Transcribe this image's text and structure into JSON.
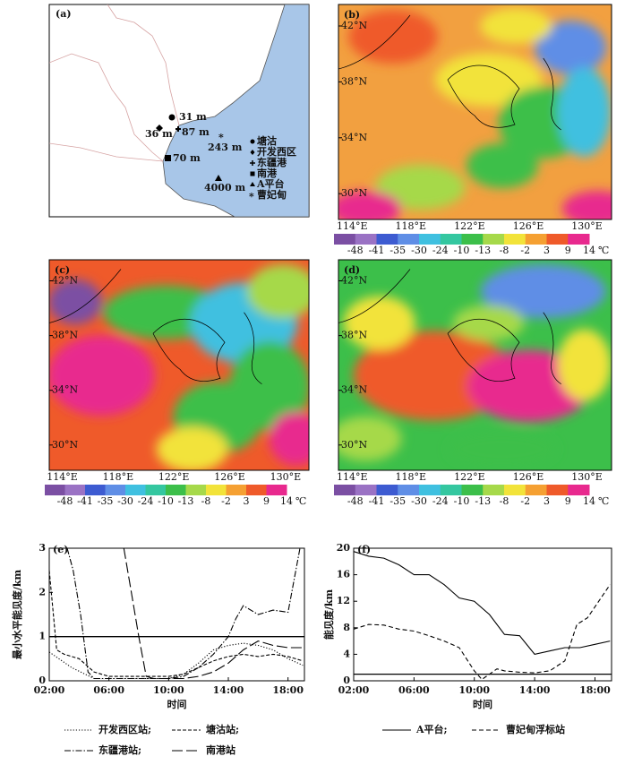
{
  "panel_a": {
    "label": "(a)",
    "heights": [
      "31 m",
      "36 m",
      "87 m",
      "243 m",
      "70 m",
      "4000 m"
    ],
    "legend": [
      "塘沽",
      "开发西区",
      "东疆港",
      "南港",
      "A平台",
      "曹妃甸"
    ]
  },
  "maps": [
    {
      "label": "(b)"
    },
    {
      "label": "(c)"
    },
    {
      "label": "(d)"
    }
  ],
  "lat_labels": [
    "42°N",
    "38°N",
    "34°N",
    "30°N"
  ],
  "lon_labels": [
    "114°E",
    "118°E",
    "122°E",
    "126°E",
    "130°E"
  ],
  "colorbar_labels": [
    "-48",
    "-41",
    "-35",
    "-30",
    "-24",
    "-10",
    "-13",
    "-8",
    "-2",
    "3",
    "9",
    "14"
  ],
  "colorbar_unit": "℃",
  "chart_data": [
    {
      "type": "line",
      "panel_label": "(e)",
      "ylabel": "最小水平能见度/km",
      "xlabel": "时间",
      "xlim": [
        2,
        19.1
      ],
      "xticks": [
        {
          "value": 2,
          "label": "02:00"
        },
        {
          "value": 6,
          "label": "06:00"
        },
        {
          "value": 10,
          "label": "10:00"
        },
        {
          "value": 14,
          "label": "14:00"
        },
        {
          "value": 18,
          "label": "18:00"
        }
      ],
      "ylim": [
        0,
        3
      ],
      "yticks": [
        0,
        1,
        2,
        3
      ],
      "hline": 1,
      "series": [
        {
          "name": "开发西区站;",
          "color": "#000000",
          "dash": "dotted",
          "x": [
            2,
            3.5,
            5,
            6,
            7,
            8,
            9,
            10,
            11,
            12,
            13,
            14,
            15,
            16,
            17,
            18,
            19
          ],
          "values": [
            0.65,
            0.3,
            0.05,
            0.05,
            0.05,
            0.05,
            0.05,
            0.05,
            0.15,
            0.4,
            0.7,
            0.8,
            0.85,
            0.8,
            0.7,
            0.5,
            0.35
          ]
        },
        {
          "name": "塘沽站;",
          "color": "#000000",
          "dash": "dash",
          "x": [
            2,
            2.5,
            3,
            4,
            5,
            6,
            7,
            8,
            9,
            10,
            11,
            12,
            13,
            14,
            15,
            16,
            17,
            18,
            19
          ],
          "values": [
            2.5,
            0.7,
            0.6,
            0.5,
            0.2,
            0.1,
            0.1,
            0.1,
            0.1,
            0.1,
            0.15,
            0.3,
            0.45,
            0.55,
            0.6,
            0.55,
            0.6,
            0.55,
            0.45
          ]
        },
        {
          "name": "东疆港站;",
          "color": "#000000",
          "dash": "dashdot",
          "x": [
            3.2,
            3.6,
            4.1,
            4.6,
            5,
            6,
            7,
            8,
            9,
            10,
            11,
            12,
            13,
            14,
            14.5,
            15,
            16,
            17,
            18,
            18.8
          ],
          "values": [
            3,
            2.5,
            1.5,
            0.2,
            0.05,
            0.05,
            0.05,
            0.05,
            0.05,
            0.05,
            0.1,
            0.3,
            0.6,
            1.0,
            1.4,
            1.7,
            1.5,
            1.6,
            1.55,
            3
          ]
        },
        {
          "name": "南港站",
          "color": "#000000",
          "dash": "longdash",
          "x": [
            7,
            7.5,
            8,
            8.5,
            9,
            10,
            11,
            12,
            13,
            14,
            15,
            16,
            17,
            18,
            19
          ],
          "values": [
            3,
            2,
            1,
            0.1,
            0.05,
            0.05,
            0.05,
            0.1,
            0.2,
            0.4,
            0.7,
            0.9,
            0.8,
            0.75,
            0.75
          ]
        }
      ]
    },
    {
      "type": "line",
      "panel_label": "(f)",
      "ylabel": "能见度/km",
      "xlabel": "时间",
      "xlim": [
        2,
        19.1
      ],
      "xticks": [
        {
          "value": 2,
          "label": "02:00"
        },
        {
          "value": 6,
          "label": "06:00"
        },
        {
          "value": 10,
          "label": "10:00"
        },
        {
          "value": 14,
          "label": "14:00"
        },
        {
          "value": 18,
          "label": "18:00"
        }
      ],
      "ylim": [
        0,
        20
      ],
      "yticks": [
        0,
        4,
        8,
        12,
        16,
        20
      ],
      "hline": 1,
      "series": [
        {
          "name": "A平台;",
          "color": "#000000",
          "dash": "solid",
          "x": [
            2,
            3,
            4,
            5,
            6,
            7,
            8,
            9,
            10,
            11,
            12,
            13,
            14,
            15,
            16,
            17,
            18,
            19
          ],
          "values": [
            19.5,
            18.8,
            18.5,
            17.5,
            16,
            16,
            14.5,
            12.5,
            12,
            10,
            7,
            6.8,
            4,
            4.5,
            5,
            5,
            5.5,
            6
          ]
        },
        {
          "name": "曹妃甸浮标站",
          "color": "#000000",
          "dash": "dashed",
          "x": [
            2,
            3,
            4,
            5,
            6,
            7,
            8,
            9,
            10,
            10.5,
            11.5,
            12,
            13,
            14,
            15,
            16,
            16.8,
            17.5,
            19
          ],
          "values": [
            7.8,
            8.5,
            8.4,
            7.8,
            7.5,
            6.8,
            6,
            5,
            1.5,
            0.2,
            1.8,
            1.5,
            1.3,
            1.2,
            1.5,
            3,
            8.5,
            9.5,
            14.5
          ]
        }
      ]
    }
  ]
}
